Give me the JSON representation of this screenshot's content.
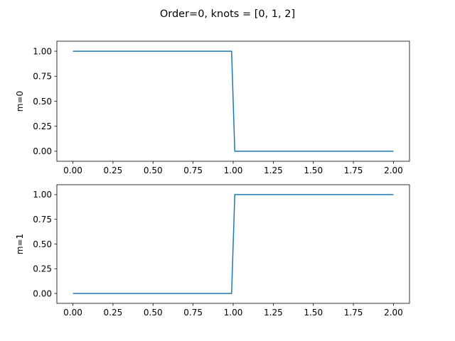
{
  "figure": {
    "suptitle": "Order=0, knots = [0, 1, 2]"
  },
  "chart_data": [
    {
      "type": "line",
      "title": "",
      "xlabel": "",
      "ylabel": "m=0",
      "xlim": [
        -0.1,
        2.1
      ],
      "ylim": [
        -0.1,
        1.1
      ],
      "xticks": [
        0.0,
        0.25,
        0.5,
        0.75,
        1.0,
        1.25,
        1.5,
        1.75,
        2.0
      ],
      "xtick_labels": [
        "0.00",
        "0.25",
        "0.50",
        "0.75",
        "1.00",
        "1.25",
        "1.50",
        "1.75",
        "2.00"
      ],
      "yticks": [
        0.0,
        0.25,
        0.5,
        0.75,
        1.0
      ],
      "ytick_labels": [
        "0.00",
        "0.25",
        "0.50",
        "0.75",
        "1.00"
      ],
      "grid": false,
      "series": [
        {
          "color": "#1f77b4",
          "x": [
            0.0,
            0.99,
            1.01,
            2.0
          ],
          "y": [
            1.0,
            1.0,
            0.0,
            0.0
          ]
        }
      ]
    },
    {
      "type": "line",
      "title": "",
      "xlabel": "",
      "ylabel": "m=1",
      "xlim": [
        -0.1,
        2.1
      ],
      "ylim": [
        -0.1,
        1.1
      ],
      "xticks": [
        0.0,
        0.25,
        0.5,
        0.75,
        1.0,
        1.25,
        1.5,
        1.75,
        2.0
      ],
      "xtick_labels": [
        "0.00",
        "0.25",
        "0.50",
        "0.75",
        "1.00",
        "1.25",
        "1.50",
        "1.75",
        "2.00"
      ],
      "yticks": [
        0.0,
        0.25,
        0.5,
        0.75,
        1.0
      ],
      "ytick_labels": [
        "0.00",
        "0.25",
        "0.50",
        "0.75",
        "1.00"
      ],
      "grid": false,
      "series": [
        {
          "color": "#1f77b4",
          "x": [
            0.0,
            0.99,
            1.01,
            2.0
          ],
          "y": [
            0.0,
            0.0,
            1.0,
            1.0
          ]
        }
      ]
    }
  ]
}
